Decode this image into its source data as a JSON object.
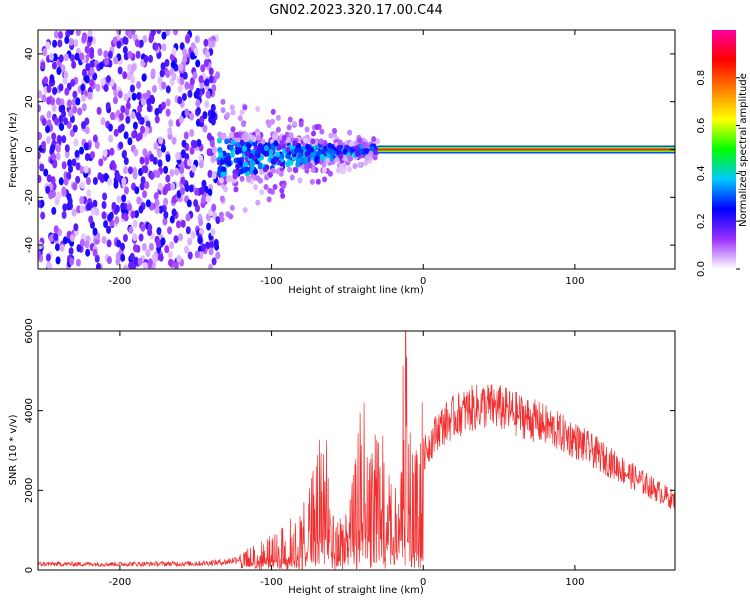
{
  "title": "GN02.2023.320.17.00.C44",
  "chart_data": [
    {
      "type": "heatmap",
      "xlabel": "Height of straight line (km)",
      "ylabel": "Frequency (Hz)",
      "xlim": [
        -254,
        166
      ],
      "ylim": [
        -50,
        50
      ],
      "xticks": [
        -200,
        -100,
        0,
        100
      ],
      "yticks": [
        -40,
        -20,
        0,
        20,
        40
      ],
      "colorbar": {
        "label": "Normalized spectral amplitude",
        "range": [
          0,
          1
        ],
        "ticks": [
          "0.0",
          "0.2",
          "0.4",
          "0.6",
          "0.8"
        ],
        "colors": [
          "#ffffff",
          "#9b30ff",
          "#0000ff",
          "#00c8ff",
          "#00ff00",
          "#ffff00",
          "#ff8000",
          "#ff0000",
          "#ff00a0"
        ]
      },
      "features": {
        "noise_region_x": [
          -254,
          -135
        ],
        "diffuse_region_x": [
          -135,
          -30
        ],
        "carrier_start_x": -30,
        "carrier_freq_hz": 0,
        "carrier_amplitude": 0.85
      }
    },
    {
      "type": "line",
      "xlabel": "Height of straight line (km)",
      "ylabel": "SNR (10 * v/v)",
      "xlim": [
        -254,
        166
      ],
      "ylim": [
        0,
        6000
      ],
      "xticks": [
        -200,
        -100,
        0,
        100
      ],
      "yticks": [
        0,
        2000,
        4000,
        6000
      ],
      "color": "#f03030",
      "series": [
        {
          "x": [
            -254,
            -200,
            -150,
            -130,
            -120,
            -110,
            -100,
            -90,
            -80,
            -70,
            -66,
            -60,
            -50,
            -45,
            -40,
            -35,
            -30,
            -25,
            -20,
            -15,
            -12,
            -10,
            -5,
            0,
            10,
            20,
            30,
            40,
            50,
            60,
            80,
            100,
            120,
            140,
            166
          ],
          "y": [
            150,
            150,
            160,
            200,
            300,
            450,
            600,
            800,
            1100,
            1900,
            3000,
            1200,
            900,
            1800,
            3200,
            2200,
            2800,
            2000,
            1500,
            1200,
            5200,
            2600,
            2100,
            3000,
            3700,
            4000,
            4200,
            4300,
            4250,
            4100,
            3800,
            3400,
            2900,
            2400,
            1800
          ]
        }
      ]
    }
  ]
}
